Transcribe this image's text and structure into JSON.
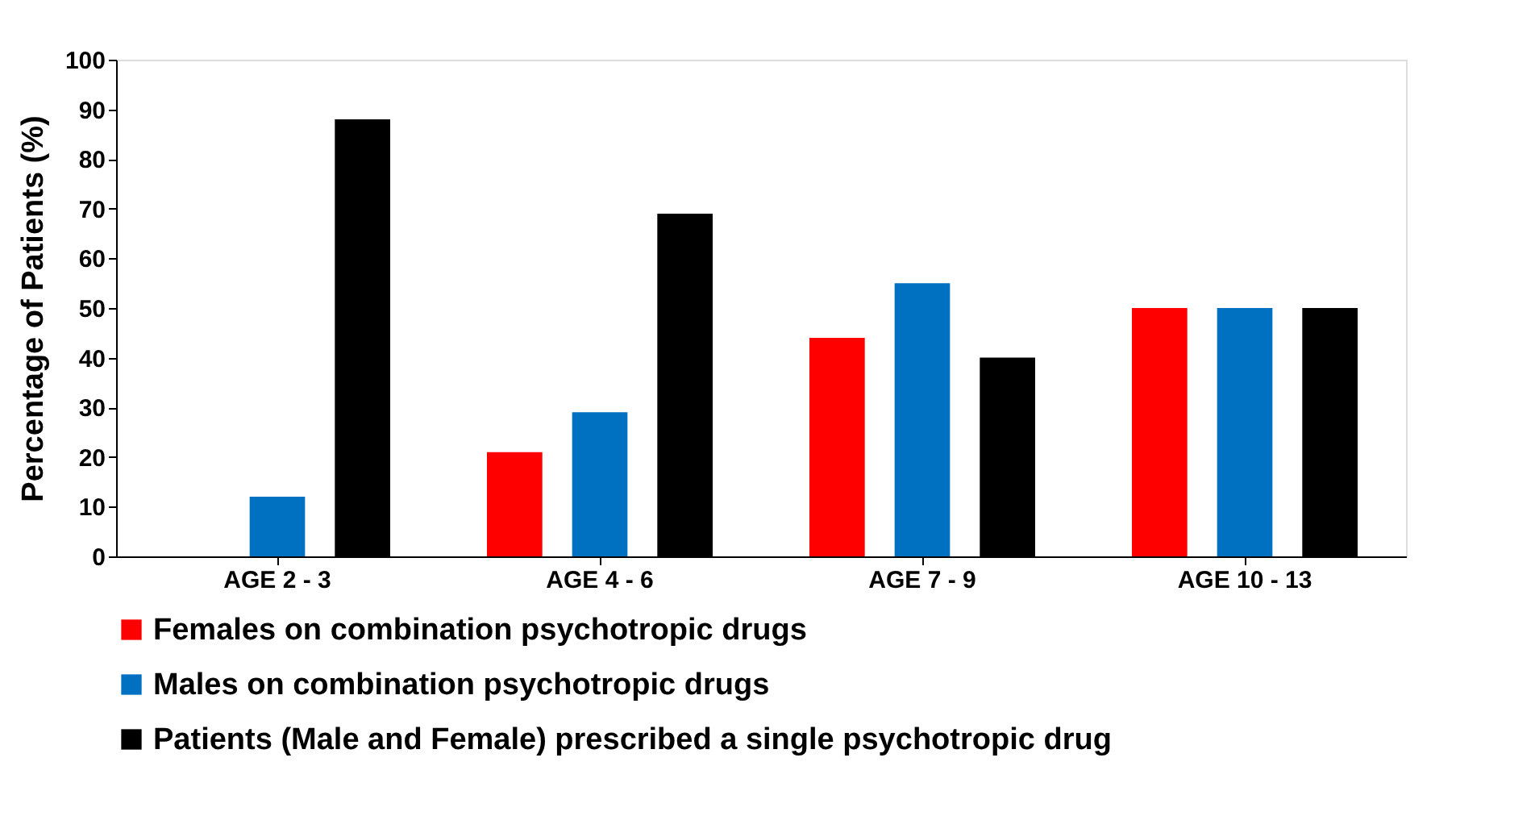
{
  "chart_data": {
    "type": "bar",
    "ylabel": "Percentage of Patients (%)",
    "categories": [
      "AGE 2 - 3",
      "AGE 4 - 6",
      "AGE 7 - 9",
      "AGE 10 - 13"
    ],
    "series": [
      {
        "name": "Females on combination psychotropic drugs",
        "color": "#ff0000",
        "values": [
          0,
          21,
          44,
          50
        ]
      },
      {
        "name": "Males on combination psychotropic drugs",
        "color": "#0070c0",
        "values": [
          12,
          29,
          55,
          50
        ]
      },
      {
        "name": "Patients (Male and Female) prescribed a single psychotropic drug",
        "color": "#000000",
        "values": [
          88,
          69,
          40,
          50
        ]
      }
    ],
    "ylim": [
      0,
      100
    ],
    "yticks": [
      0,
      10,
      20,
      30,
      40,
      50,
      60,
      70,
      80,
      90,
      100
    ],
    "grid": false,
    "legend": "bottom"
  }
}
